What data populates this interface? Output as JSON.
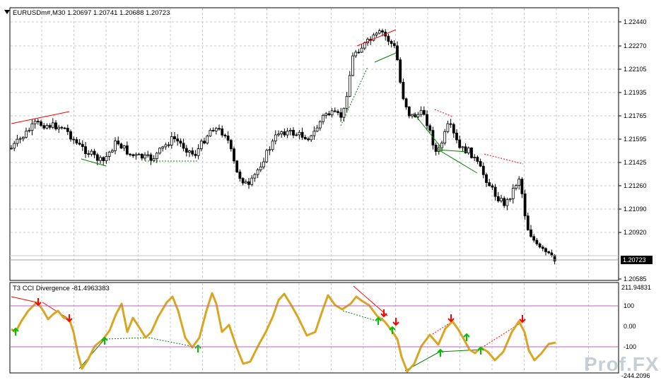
{
  "window": {
    "symbol_title": "EURUSDm#,M30  1.20697 1.20741 1.20688 1.20723",
    "indicator_title": "T3 CCI Divergence -81.4963383"
  },
  "price_axis": {
    "ticks": [
      "1.22440",
      "1.22270",
      "1.22105",
      "1.21935",
      "1.21765",
      "1.21595",
      "1.21425",
      "1.21260",
      "1.21090",
      "1.20920",
      "1.20585"
    ],
    "tick_values": [
      1.2244,
      1.2227,
      1.22105,
      1.21935,
      1.21765,
      1.21595,
      1.21425,
      1.2126,
      1.2109,
      1.2092,
      1.20585
    ],
    "current_price": "1.20723"
  },
  "indicator_axis": {
    "top_label": "211.94831",
    "levels": [
      "100",
      "0.00",
      "-100"
    ],
    "bottom_label": "-244.2096"
  },
  "watermark": {
    "text": "Prof.FX"
  },
  "colors": {
    "background": "#ffffff",
    "grid": "#c8c8c8",
    "candle": "#000000",
    "cci_line": "#daa520",
    "level_line": "#c060c0",
    "bearish_divergence": "#ff0000",
    "bullish_divergence": "#008000",
    "arrow_up": "#00c000",
    "arrow_down": "#ff0000"
  },
  "icons": {
    "dropdown": "triangle-down-icon",
    "up_arrow": "up-arrow-icon",
    "down_arrow": "down-arrow-icon"
  }
}
